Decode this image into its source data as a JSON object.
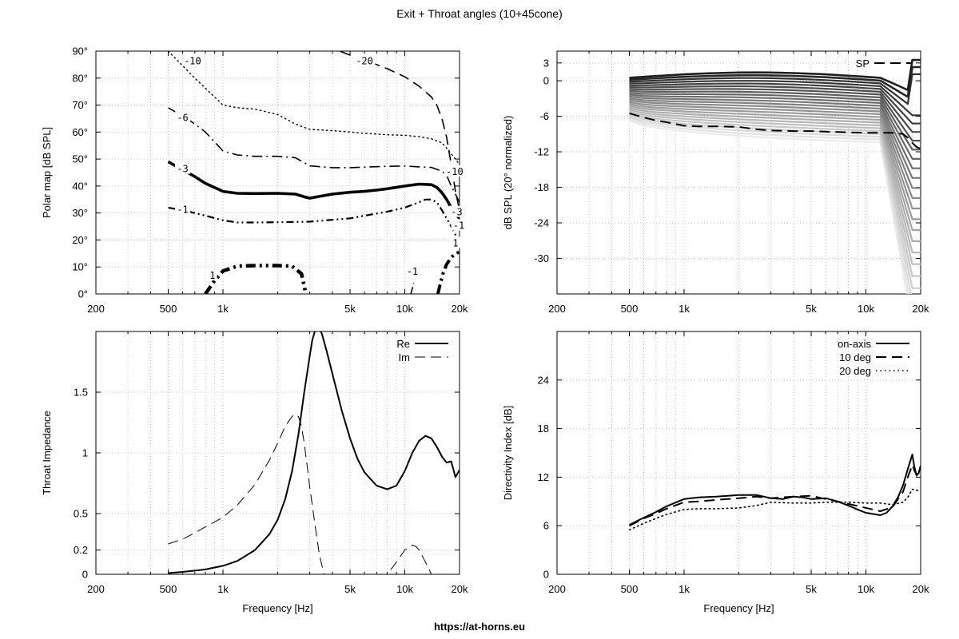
{
  "title": "Exit + Throat angles (10+45cone)",
  "footer": "https://at-horns.eu",
  "chart_data": [
    {
      "type": "line",
      "name_key": "polar",
      "xscale": "log",
      "xlim": [
        200,
        20000
      ],
      "ylim": [
        0,
        90
      ],
      "xticks": [
        200,
        500,
        1000,
        5000,
        10000,
        20000
      ],
      "xtick_labels": [
        "200",
        "500",
        "1k",
        "5k",
        "10k",
        "20k"
      ],
      "minor_xticks": [
        300,
        400,
        600,
        700,
        800,
        900,
        2000,
        3000,
        4000,
        6000,
        7000,
        8000,
        9000
      ],
      "yticks": [
        0,
        10,
        20,
        30,
        40,
        50,
        60,
        70,
        80,
        90
      ],
      "ytick_labels": [
        "0°",
        "10°",
        "20°",
        "30°",
        "40°",
        "50°",
        "60°",
        "70°",
        "80°",
        "90°"
      ],
      "xlabel": "",
      "ylabel": "Polar map [dB SPL]",
      "grid": true,
      "series": [
        {
          "label": "-10",
          "style": "dot",
          "width": 1.4,
          "x": [
            500,
            700,
            1000,
            1200,
            1500,
            2000,
            2500,
            3000,
            4000,
            5000,
            6000,
            8000,
            10000,
            12000,
            14000,
            16000,
            17000,
            18000,
            19000,
            20000
          ],
          "y": [
            90,
            80,
            70,
            69,
            68.5,
            66.5,
            63,
            61,
            60.5,
            60,
            59.5,
            59,
            58.8,
            58.3,
            57.5,
            56,
            54,
            52,
            50,
            48
          ]
        },
        {
          "label": "-20",
          "style": "dash",
          "width": 1.6,
          "x": [
            4400,
            5000,
            6000,
            7000,
            8000,
            10000,
            12000,
            14000,
            15000,
            16000,
            17000,
            18000,
            19000,
            20000
          ],
          "y": [
            90,
            88.5,
            86.5,
            85,
            83.5,
            80.5,
            77,
            73,
            70,
            65,
            58,
            48,
            38,
            31
          ]
        },
        {
          "label": "-6",
          "style": "dashdot",
          "width": 1.6,
          "x": [
            500,
            600,
            700,
            800,
            1000,
            1200,
            1500,
            2000,
            2500,
            3000,
            4000,
            5000,
            6000,
            8000,
            10000,
            12000,
            14000,
            16000,
            17000,
            18000,
            19000,
            20000
          ],
          "y": [
            69,
            66,
            63,
            60,
            53,
            51.5,
            51,
            51,
            50.5,
            47.5,
            46.8,
            46.8,
            47,
            47.3,
            47.4,
            47.1,
            46.9,
            45.5,
            44,
            40,
            37,
            34
          ]
        },
        {
          "label": "-3",
          "style": "solid",
          "width": 3.6,
          "x": [
            500,
            600,
            700,
            800,
            1000,
            1200,
            1500,
            2000,
            2500,
            2800,
            3000,
            3300,
            4000,
            5000,
            6000,
            7000,
            8000,
            10000,
            12000,
            14000,
            15000,
            16000,
            17000,
            18000,
            19000,
            20000
          ],
          "y": [
            49,
            46,
            43.5,
            41,
            38,
            37.3,
            37.2,
            37.3,
            37,
            36,
            35.5,
            36,
            37,
            37.7,
            38,
            38.5,
            39,
            40,
            40.7,
            40.5,
            39.5,
            37.5,
            35,
            32,
            29.5,
            28
          ]
        },
        {
          "label": "-1",
          "style": "dashdotdot",
          "width": 2.2,
          "x": [
            500,
            600,
            700,
            800,
            1000,
            1200,
            1500,
            2000,
            2500,
            3000,
            4000,
            5000,
            6000,
            8000,
            10000,
            12000,
            13000,
            14000,
            15000,
            16000,
            17000,
            18000,
            19000,
            20000
          ],
          "y": [
            32,
            31,
            30,
            29,
            27.3,
            26.5,
            26.5,
            26.6,
            26.7,
            26.8,
            27.5,
            28,
            29,
            30.5,
            32,
            34,
            35,
            35,
            34,
            31,
            28,
            25,
            22,
            19
          ]
        },
        {
          "label": "1",
          "style": "dashdotdot_heavy",
          "width": 4.5,
          "x": [
            800,
            900,
            1000,
            1200,
            1500,
            2000,
            2400,
            2700,
            2800,
            2850
          ],
          "y": [
            0,
            5,
            8.5,
            10.3,
            10.5,
            10.5,
            10.3,
            7.5,
            3,
            0
          ]
        },
        {
          "label": "-1",
          "style": "dashdotdot",
          "width": 1.6,
          "x": [
            10800,
            11000,
            11200
          ],
          "y": [
            0,
            2,
            4
          ]
        },
        {
          "label": "1",
          "style": "dashdotdot_heavy",
          "width": 4,
          "x": [
            15200,
            15700,
            16300,
            17000,
            18000,
            19000,
            20000
          ],
          "y": [
            0,
            4,
            8,
            11,
            13.5,
            15,
            15.5
          ]
        }
      ],
      "contour_labels": [
        {
          "text": "-10",
          "x": 680,
          "y": 86
        },
        {
          "text": "-20",
          "x": 6000,
          "y": 86
        },
        {
          "text": "-6",
          "x": 600,
          "y": 65
        },
        {
          "text": "-3",
          "x": 600,
          "y": 46
        },
        {
          "text": "-1",
          "x": 600,
          "y": 31
        },
        {
          "text": "1",
          "x": 875,
          "y": 6.5
        },
        {
          "text": "-1",
          "x": 11000,
          "y": 8
        },
        {
          "text": "-10",
          "x": 18800,
          "y": 45
        },
        {
          "text": "-3",
          "x": 19300,
          "y": 30
        },
        {
          "text": "-1",
          "x": 19800,
          "y": 25
        },
        {
          "text": "1",
          "x": 19000,
          "y": 18.5
        }
      ]
    },
    {
      "type": "line",
      "name_key": "spl",
      "xscale": "log",
      "xlim": [
        200,
        20000
      ],
      "ylim": [
        -36,
        5
      ],
      "xticks": [
        200,
        500,
        1000,
        5000,
        10000,
        20000
      ],
      "xtick_labels": [
        "200",
        "500",
        "1k",
        "5k",
        "10k",
        "20k"
      ],
      "minor_xticks": [
        300,
        400,
        600,
        700,
        800,
        900,
        2000,
        3000,
        4000,
        6000,
        7000,
        8000,
        9000
      ],
      "yticks": [
        3,
        0,
        -6,
        -12,
        -18,
        -24,
        -30
      ],
      "ytick_labels": [
        "3",
        "0",
        "-6",
        "-12",
        "-18",
        "-24",
        "-30"
      ],
      "xlabel": "",
      "ylabel": "dB SPL (20° normalized)",
      "grid": true,
      "legend": {
        "position": "top-right",
        "entries": [
          "SP"
        ]
      },
      "family": {
        "count": 24,
        "x": [
          500,
          600,
          700,
          800,
          1000,
          1200,
          1500,
          2000,
          2500,
          3000,
          4000,
          5000,
          6000,
          8000,
          10000,
          12000,
          14000,
          16000,
          17000,
          18000,
          19000,
          20000
        ],
        "start_at_500": [
          0.5,
          -6.8
        ],
        "high_freq_tail_bottom": -35
      },
      "sp_curve": {
        "label": "SP",
        "x": [
          500,
          600,
          700,
          800,
          1000,
          1200,
          1500,
          2000,
          2500,
          3000,
          4000,
          5000,
          6000,
          8000,
          10000,
          12000,
          14000,
          16000,
          17000,
          18000,
          19000,
          20000
        ],
        "y": [
          -5.5,
          -6.2,
          -6.7,
          -7.0,
          -7.6,
          -7.7,
          -7.7,
          -7.8,
          -8.2,
          -8.4,
          -8.5,
          -8.5,
          -8.6,
          -8.7,
          -8.8,
          -8.8,
          -8.8,
          -9.0,
          -9.6,
          -10.5,
          -11.2,
          -11.5
        ]
      }
    },
    {
      "type": "line",
      "name_key": "impedance",
      "xscale": "log",
      "xlim": [
        200,
        20000
      ],
      "ylim": [
        0,
        2
      ],
      "xticks": [
        200,
        500,
        1000,
        5000,
        10000,
        20000
      ],
      "xtick_labels": [
        "200",
        "500",
        "1k",
        "5k",
        "10k",
        "20k"
      ],
      "minor_xticks": [
        300,
        400,
        600,
        700,
        800,
        900,
        2000,
        3000,
        4000,
        6000,
        7000,
        8000,
        9000
      ],
      "yticks": [
        0,
        0.2,
        0.5,
        1,
        1.5
      ],
      "ytick_labels": [
        "0",
        "0.2",
        "0.5",
        "1",
        "1.5"
      ],
      "xlabel": "Frequency [Hz]",
      "ylabel": "Throat Impedance",
      "grid": true,
      "legend": {
        "position": "top-right"
      },
      "series": [
        {
          "name": "Re",
          "style": "solid",
          "width": 2,
          "x": [
            500,
            600,
            700,
            800,
            1000,
            1200,
            1500,
            1800,
            2000,
            2200,
            2400,
            2600,
            2800,
            3000,
            3100,
            3200,
            3300,
            3400,
            3500,
            3700,
            4000,
            4500,
            5000,
            5500,
            6000,
            7000,
            8000,
            9000,
            10000,
            11000,
            12000,
            13000,
            14000,
            15000,
            16000,
            17000,
            18000,
            19000,
            20000
          ],
          "y": [
            0.01,
            0.02,
            0.03,
            0.04,
            0.07,
            0.11,
            0.2,
            0.33,
            0.45,
            0.62,
            0.85,
            1.15,
            1.5,
            1.8,
            1.93,
            2.0,
            2.03,
            2.02,
            1.98,
            1.85,
            1.65,
            1.35,
            1.12,
            0.95,
            0.84,
            0.73,
            0.7,
            0.73,
            0.85,
            1.0,
            1.1,
            1.14,
            1.12,
            1.05,
            0.97,
            0.92,
            0.93,
            0.8,
            0.86
          ]
        },
        {
          "name": "Im",
          "style": "dash",
          "width": 1,
          "x": [
            500,
            600,
            700,
            800,
            1000,
            1200,
            1500,
            1800,
            2000,
            2200,
            2400,
            2500,
            2600,
            2700,
            2800,
            2900,
            3000,
            3200,
            3400,
            3600,
            3800,
            8000,
            9000,
            10000,
            11000,
            11500,
            12000,
            13000,
            14000
          ],
          "y": [
            0.25,
            0.29,
            0.34,
            0.39,
            0.47,
            0.57,
            0.74,
            0.94,
            1.08,
            1.22,
            1.3,
            1.32,
            1.3,
            1.22,
            1.08,
            0.9,
            0.72,
            0.42,
            0.15,
            0.0,
            -0.1,
            0.0,
            0.1,
            0.2,
            0.24,
            0.23,
            0.2,
            0.1,
            0.0
          ]
        }
      ]
    },
    {
      "type": "line",
      "name_key": "di",
      "xscale": "log",
      "xlim": [
        200,
        20000
      ],
      "ylim": [
        0,
        30
      ],
      "xticks": [
        200,
        500,
        1000,
        5000,
        10000,
        20000
      ],
      "xtick_labels": [
        "200",
        "500",
        "1k",
        "5k",
        "10k",
        "20k"
      ],
      "minor_xticks": [
        300,
        400,
        600,
        700,
        800,
        900,
        2000,
        3000,
        4000,
        6000,
        7000,
        8000,
        9000
      ],
      "yticks": [
        0,
        6,
        12,
        18,
        24
      ],
      "ytick_labels": [
        "0",
        "6",
        "12",
        "18",
        "24"
      ],
      "xlabel": "Frequency [Hz]",
      "ylabel": "Directivity Index [dB]",
      "grid": true,
      "legend": {
        "position": "top-right"
      },
      "series": [
        {
          "name": "on-axis",
          "style": "solid",
          "width": 2,
          "x": [
            500,
            600,
            700,
            800,
            1000,
            1200,
            1500,
            2000,
            2500,
            3000,
            3500,
            4000,
            4500,
            5000,
            6000,
            7000,
            8000,
            9000,
            10000,
            12000,
            13000,
            14000,
            15000,
            16000,
            17000,
            18000,
            18500,
            19000,
            19500,
            20000
          ],
          "y": [
            6.1,
            7.0,
            7.7,
            8.4,
            9.3,
            9.5,
            9.6,
            9.8,
            9.8,
            9.4,
            9.3,
            9.6,
            9.5,
            9.3,
            9.4,
            9.0,
            8.5,
            8.0,
            7.6,
            7.3,
            7.6,
            8.4,
            9.5,
            11.0,
            13.0,
            14.8,
            13.2,
            12.2,
            12.5,
            13.4
          ]
        },
        {
          "name": "10 deg",
          "style": "dash",
          "width": 2,
          "x": [
            500,
            600,
            700,
            800,
            1000,
            1200,
            1500,
            2000,
            2500,
            3000,
            4000,
            5000,
            6000,
            7000,
            8000,
            10000,
            12000,
            14000,
            16000,
            17000,
            18000,
            18500,
            19000,
            20000
          ],
          "y": [
            6.0,
            6.9,
            7.5,
            8.1,
            8.9,
            9.0,
            9.2,
            9.4,
            9.6,
            9.4,
            9.6,
            9.7,
            9.3,
            9.0,
            8.7,
            8.2,
            7.8,
            8.3,
            10.2,
            12.0,
            13.5,
            12.8,
            12.3,
            12.8
          ]
        },
        {
          "name": "20 deg",
          "style": "dot",
          "width": 1.6,
          "x": [
            500,
            600,
            700,
            800,
            1000,
            1200,
            1500,
            2000,
            2500,
            3000,
            4000,
            5000,
            6000,
            8000,
            10000,
            12000,
            14000,
            16000,
            17000,
            18000,
            19000,
            20000
          ],
          "y": [
            5.5,
            6.3,
            6.9,
            7.4,
            8.0,
            8.1,
            8.1,
            8.2,
            8.5,
            8.9,
            8.8,
            8.8,
            8.9,
            8.9,
            8.8,
            8.8,
            8.6,
            8.9,
            9.5,
            10.5,
            10.4,
            10.2
          ]
        }
      ]
    }
  ]
}
